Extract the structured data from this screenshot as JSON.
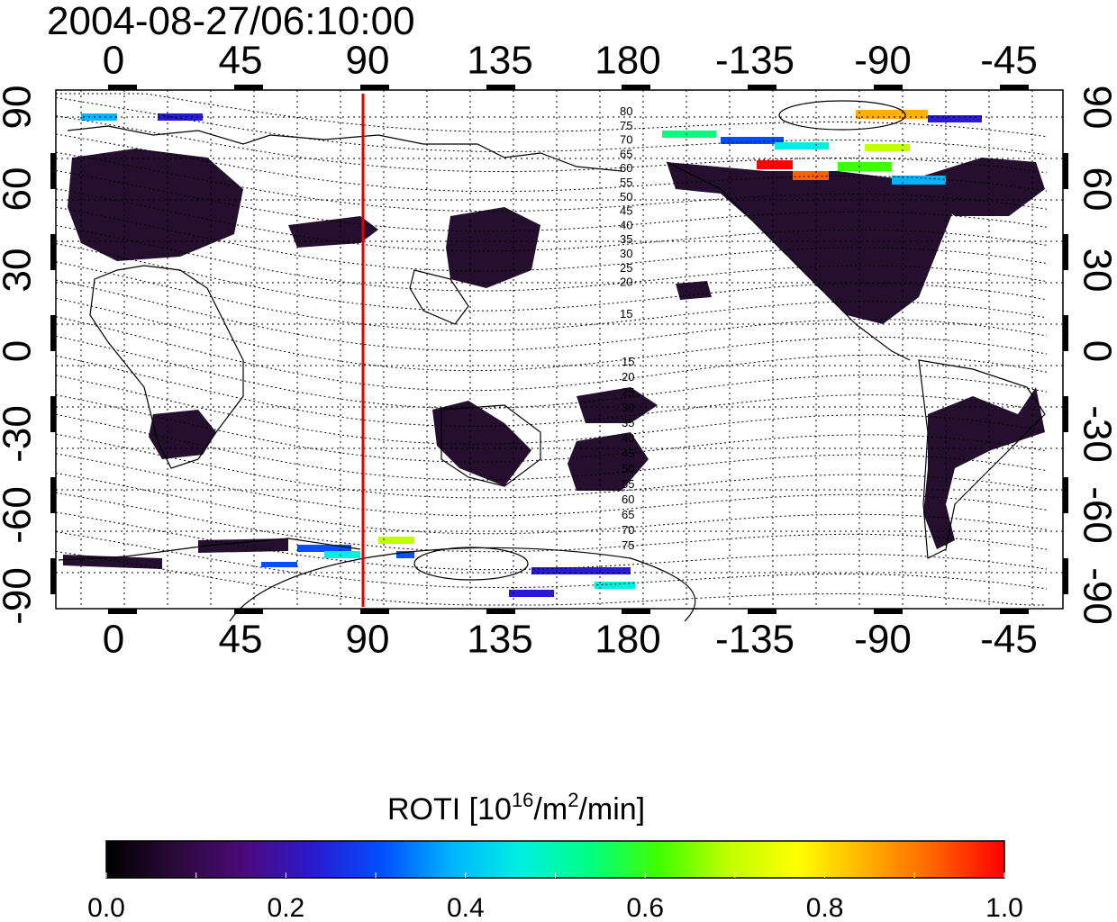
{
  "title": "2004-08-27/06:10:00",
  "map": {
    "top_lon_labels": [
      "0",
      "45",
      "90",
      "135",
      "180",
      "-135",
      "-90",
      "-45"
    ],
    "bottom_lon_labels": [
      "0",
      "45",
      "90",
      "135",
      "180",
      "-135",
      "-90",
      "-45"
    ],
    "left_lat_labels": [
      "90",
      "60",
      "30",
      "0",
      "-30",
      "-60",
      "-90"
    ],
    "right_lat_labels": [
      "90",
      "60",
      "30",
      "0",
      "-30",
      "-60",
      "-90"
    ],
    "marker_line_color": "#e00000",
    "contour_labels_north": [
      "80",
      "75",
      "70",
      "65",
      "60",
      "55",
      "50",
      "45",
      "40",
      "35",
      "30",
      "25",
      "20",
      "15"
    ],
    "contour_labels_south": [
      "15",
      "20",
      "25",
      "30",
      "35",
      "40",
      "45",
      "50",
      "55",
      "60",
      "65",
      "70",
      "75"
    ]
  },
  "colorbar": {
    "title_main": "ROTI  [10",
    "title_sup1": "16",
    "title_mid": "/m",
    "title_sup2": "2",
    "title_end": "/min]",
    "tick_labels": [
      "0.0",
      "0.2",
      "0.4",
      "0.6",
      "0.8",
      "1.0"
    ],
    "range": [
      0.0,
      1.0
    ],
    "colors": [
      "#000000",
      "#2a0a3a",
      "#4b0a7a",
      "#2a1ad0",
      "#0050ff",
      "#00b4ff",
      "#00f0e0",
      "#00ff80",
      "#40ff00",
      "#c0ff00",
      "#ffff00",
      "#ffb000",
      "#ff6000",
      "#ff0000"
    ]
  }
}
